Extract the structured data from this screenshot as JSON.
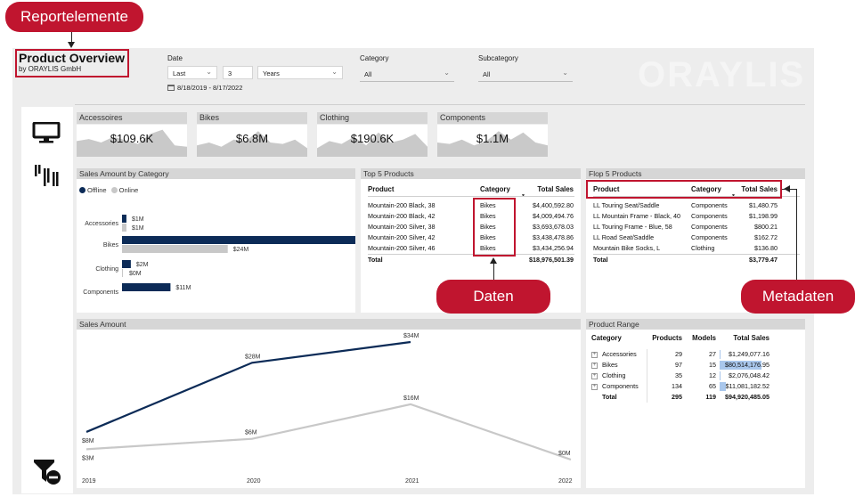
{
  "annotations": {
    "report_elements": "Reportelemente",
    "data": "Daten",
    "metadata": "Metadaten"
  },
  "header": {
    "title": "Product Overview",
    "subtitle": "by ORAYLIS GmbH",
    "logo": "ORAYLIS"
  },
  "slicers": {
    "date": {
      "label": "Date",
      "mode": "Last",
      "count": "3",
      "unit": "Years",
      "range": "8/18/2019 - 8/17/2022"
    },
    "category": {
      "label": "Category",
      "value": "All"
    },
    "subcategory": {
      "label": "Subcategory",
      "value": "All"
    }
  },
  "sidebar": {
    "icons": [
      "monitor-icon",
      "bars-icon",
      "filter-clear-icon"
    ]
  },
  "kpis": [
    {
      "title": "Accessoires",
      "value": "$109.6K",
      "spark": [
        0.55,
        0.62,
        0.5,
        0.7,
        0.58,
        0.45,
        0.8,
        0.95,
        0.4,
        0.35
      ]
    },
    {
      "title": "Bikes",
      "value": "$6.8M",
      "spark": [
        0.4,
        0.5,
        0.35,
        0.6,
        0.55,
        0.9,
        0.5,
        0.45,
        0.6,
        0.3
      ]
    },
    {
      "title": "Clothing",
      "value": "$190.6K",
      "spark": [
        0.3,
        0.55,
        0.45,
        0.7,
        0.4,
        0.85,
        0.5,
        0.6,
        0.8,
        0.35
      ]
    },
    {
      "title": "Components",
      "value": "$1.1M",
      "spark": [
        0.5,
        0.45,
        0.6,
        0.4,
        0.55,
        0.9,
        0.6,
        0.85,
        0.5,
        0.4
      ]
    }
  ],
  "sales_by_category": {
    "title": "Sales Amount by Category",
    "legend": [
      {
        "name": "Offline",
        "color": "#0c2b57"
      },
      {
        "name": "Online",
        "color": "#c8c8c8"
      }
    ],
    "labels_offline": [
      "$1M",
      "$56M",
      "$2M",
      "$11M"
    ],
    "labels_online": [
      "$1M",
      "$24M",
      "$0M",
      ""
    ]
  },
  "top5": {
    "title": "Top 5 Products",
    "headers": [
      "Product",
      "Category",
      "Total Sales"
    ],
    "rows": [
      [
        "Mountain-200 Black, 38",
        "Bikes",
        "$4,400,592.80"
      ],
      [
        "Mountain-200 Black, 42",
        "Bikes",
        "$4,009,494.76"
      ],
      [
        "Mountain-200 Silver, 38",
        "Bikes",
        "$3,693,678.03"
      ],
      [
        "Mountain-200 Silver, 42",
        "Bikes",
        "$3,438,478.86"
      ],
      [
        "Mountain-200 Silver, 46",
        "Bikes",
        "$3,434,256.94"
      ]
    ],
    "total": [
      "Total",
      "",
      "$18,976,501.39"
    ]
  },
  "flop5": {
    "title": "Flop 5 Products",
    "headers": [
      "Product",
      "Category",
      "Total Sales"
    ],
    "rows": [
      [
        "LL Touring Seat/Saddle",
        "Components",
        "$1,480.75"
      ],
      [
        "LL Mountain Frame - Black, 40",
        "Components",
        "$1,198.99"
      ],
      [
        "LL Touring Frame - Blue, 58",
        "Components",
        "$800.21"
      ],
      [
        "LL Road Seat/Saddle",
        "Components",
        "$162.72"
      ],
      [
        "Mountain Bike Socks, L",
        "Clothing",
        "$136.80"
      ]
    ],
    "total": [
      "Total",
      "",
      "$3,779.47"
    ]
  },
  "sales_amount": {
    "title": "Sales Amount",
    "labels_offline": [
      "$8M",
      "$28M",
      "$34M",
      ""
    ],
    "labels_online": [
      "$3M",
      "$6M",
      "$16M",
      "$0M"
    ]
  },
  "product_range": {
    "title": "Product Range",
    "headers": [
      "Category",
      "Products",
      "Models",
      "Total Sales"
    ],
    "rows": [
      [
        "Accessories",
        "29",
        "27",
        "$1,249,077.16"
      ],
      [
        "Bikes",
        "97",
        "15",
        "$80,514,176.95"
      ],
      [
        "Clothing",
        "35",
        "12",
        "$2,076,048.42"
      ],
      [
        "Components",
        "134",
        "65",
        "$11,081,182.52"
      ]
    ],
    "total": [
      "Total",
      "295",
      "119",
      "$94,920,485.05"
    ],
    "sales_fraction": [
      0.013,
      0.848,
      0.022,
      0.117
    ]
  },
  "chart_data": [
    {
      "type": "bar",
      "title": "Sales Amount by Category",
      "categories": [
        "Accessories",
        "Bikes",
        "Clothing",
        "Components"
      ],
      "series": [
        {
          "name": "Offline",
          "values": [
            1,
            56,
            2,
            11
          ]
        },
        {
          "name": "Online",
          "values": [
            1,
            24,
            0,
            0
          ]
        }
      ],
      "orientation": "horizontal",
      "legend": "top-left",
      "colors": [
        "#0c2b57",
        "#c8c8c8"
      ]
    },
    {
      "type": "line",
      "title": "Sales Amount",
      "x": [
        "2019",
        "2020",
        "2021",
        "2022"
      ],
      "series": [
        {
          "values": [
            8,
            28,
            34,
            null
          ]
        },
        {
          "values": [
            3,
            6,
            16,
            0
          ]
        }
      ],
      "colors": [
        "#0c2b57",
        "#c8c8c8"
      ]
    }
  ]
}
